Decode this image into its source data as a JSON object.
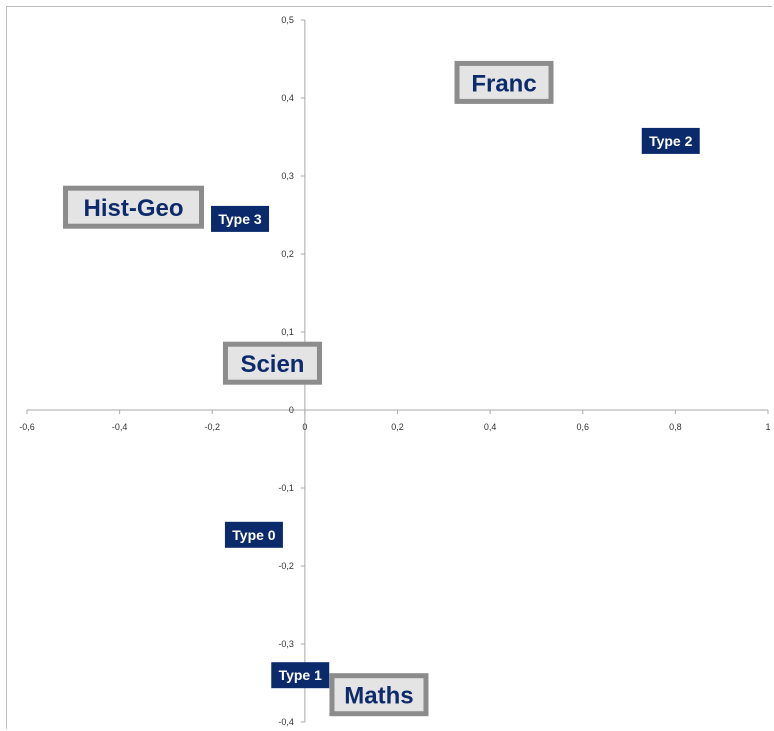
{
  "chart_data": {
    "type": "scatter",
    "title": "",
    "xlabel": "",
    "ylabel": "",
    "xlim": [
      -0.6,
      1
    ],
    "ylim": [
      -0.4,
      0.5
    ],
    "grid": false,
    "x_ticks": [
      -0.6,
      -0.4,
      -0.2,
      0,
      0.2,
      0.4,
      0.6,
      0.8,
      1
    ],
    "y_ticks": [
      -0.4,
      -0.3,
      -0.2,
      -0.1,
      0,
      0.1,
      0.2,
      0.3,
      0.4,
      0.5
    ],
    "x_tick_labels": [
      "-0,6",
      "-0,4",
      "-0,2",
      "0",
      "0,2",
      "0,4",
      "0,6",
      "0,8",
      "1"
    ],
    "y_tick_labels": [
      "-0,4",
      "-0,3",
      "-0,2",
      "-0,1",
      "0",
      "0,1",
      "0,2",
      "0,3",
      "0,4",
      "0,5"
    ],
    "points": [
      {
        "label": "Franc",
        "kind": "variable",
        "x": 0.43,
        "y": 0.42
      },
      {
        "label": "Hist-Geo",
        "kind": "variable",
        "x": -0.37,
        "y": 0.26
      },
      {
        "label": "Scien",
        "kind": "variable",
        "x": -0.07,
        "y": 0.06
      },
      {
        "label": "Maths",
        "kind": "variable",
        "x": 0.16,
        "y": -0.365
      },
      {
        "label": "Type 2",
        "kind": "type",
        "x": 0.79,
        "y": 0.345
      },
      {
        "label": "Type 3",
        "kind": "type",
        "x": -0.14,
        "y": 0.245
      },
      {
        "label": "Type 0",
        "kind": "type",
        "x": -0.11,
        "y": -0.16
      },
      {
        "label": "Type 1",
        "kind": "type",
        "x": -0.01,
        "y": -0.34
      }
    ]
  }
}
